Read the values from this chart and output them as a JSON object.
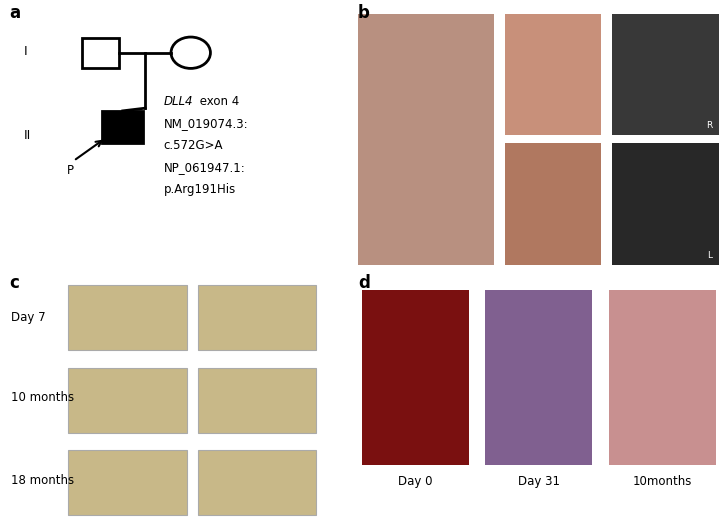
{
  "panel_label_fontsize": 12,
  "panel_label_fontweight": "bold",
  "background_color": "#ffffff",
  "pedigree": {
    "gen1_label": "I",
    "gen2_label": "II",
    "proband_label": "P",
    "italic_part": "DLL4",
    "annotation_line1_rest": " exon 4",
    "annotation_line2": "NM_019074.3:",
    "annotation_line3": "c.572G>A",
    "annotation_line4": "NP_061947.1:",
    "annotation_line5": "p.Arg191His"
  },
  "panel_c_time_labels": [
    "Day 7",
    "10 months",
    "18 months"
  ],
  "panel_d_time_labels": [
    "Day 0",
    "Day 31",
    "10months"
  ],
  "ct_bg_color": "#c8b888",
  "ct_edge_color": "#aaaaaa",
  "b_baby_color": "#b89080",
  "b_foot1_color": "#c8907a",
  "b_foot2_color": "#b07860",
  "b_xray1_color": "#383838",
  "b_xray2_color": "#282828",
  "d0_color": "#7a1010",
  "d31_color": "#806090",
  "d10m_color": "#c89090",
  "xray_r_label": "R",
  "xray_l_label": "L"
}
